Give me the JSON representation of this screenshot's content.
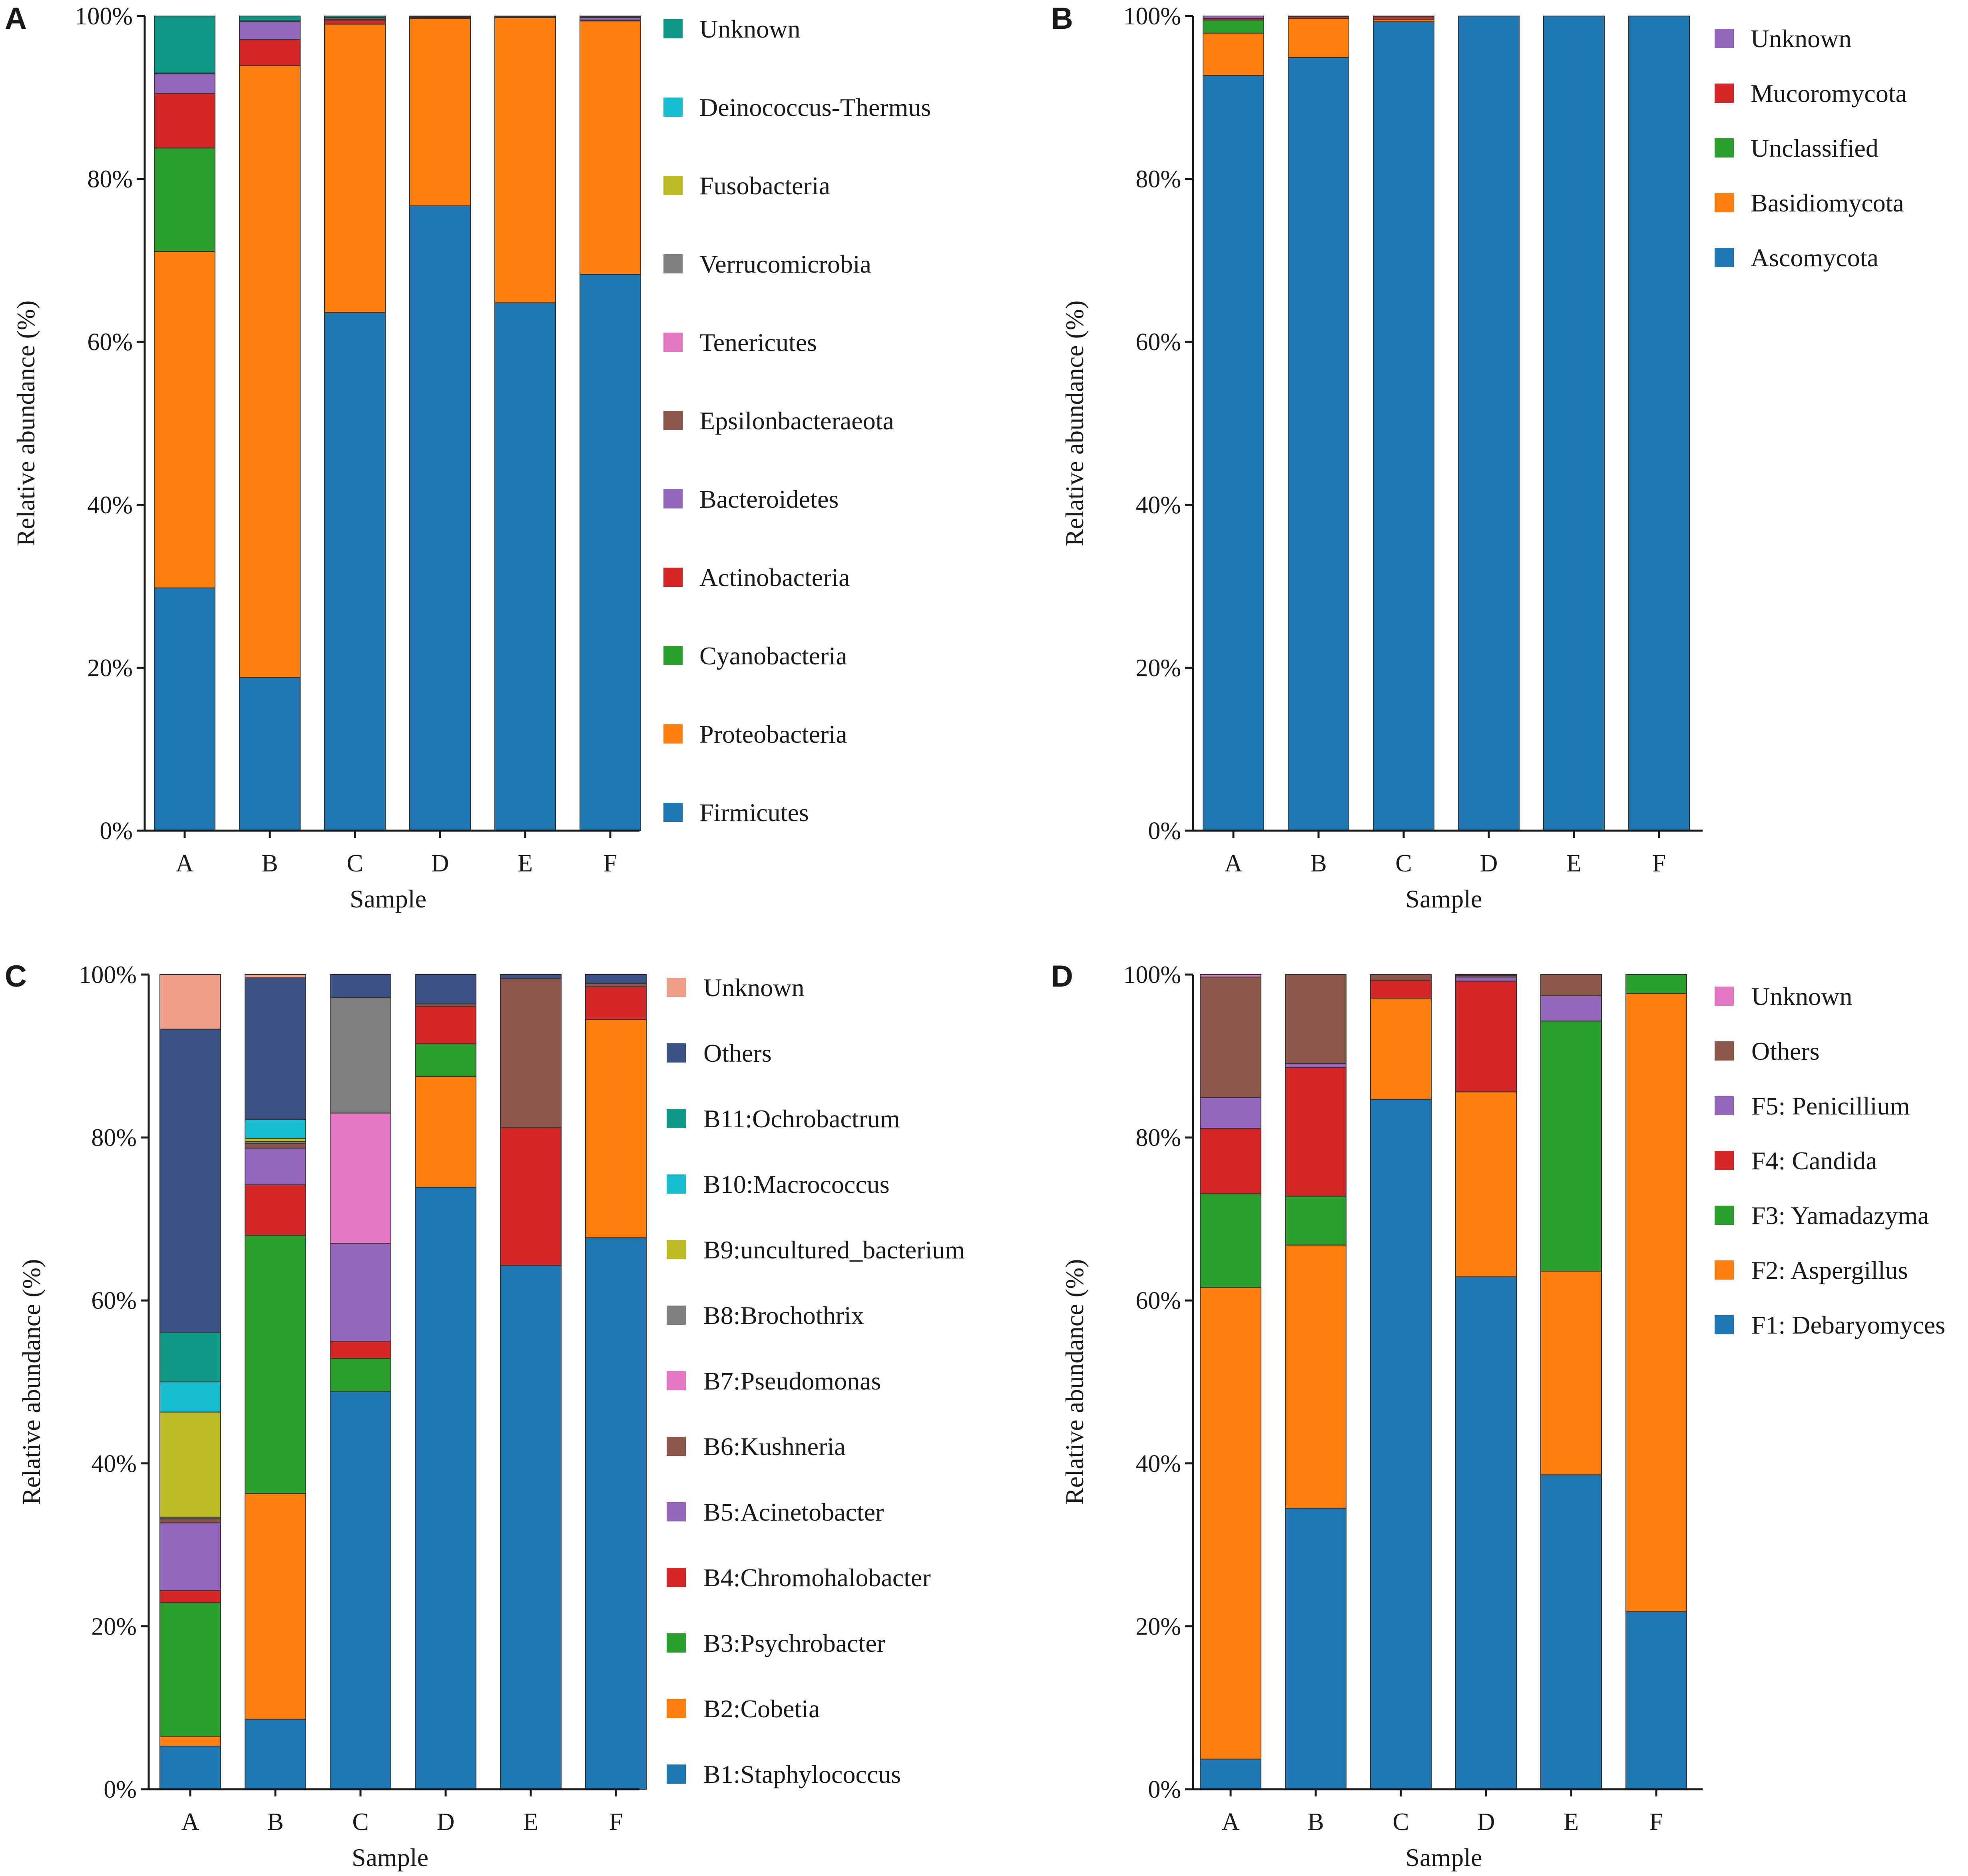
{
  "figure": {
    "description": ""
  },
  "colors": {
    "blue": "#1f77b4",
    "orange": "#ff7f0e",
    "green": "#2ca02c",
    "red": "#d62728",
    "purple": "#9467bd",
    "brown": "#8c564b",
    "pink": "#e377c2",
    "gray": "#7f7f7f",
    "olive": "#bcbd22",
    "cyan": "#17becf",
    "teal": "#0f9a87",
    "navy": "#3b5184",
    "salmon": "#f0a08a"
  },
  "chart_data": [
    {
      "id": "A",
      "panel_label": "A",
      "type": "bar",
      "stacked": true,
      "title": "",
      "xlabel": "Sample",
      "ylabel": "Relative abundance (%)",
      "ylim": [
        0,
        100
      ],
      "yticks": [
        "0%",
        "20%",
        "40%",
        "60%",
        "80%",
        "100%"
      ],
      "categories": [
        "A",
        "B",
        "C",
        "D",
        "E",
        "F"
      ],
      "series": [
        {
          "name": "Firmicutes",
          "color": "#1f77b4",
          "values": [
            29.8,
            18.8,
            63.6,
            76.7,
            64.8,
            68.3
          ]
        },
        {
          "name": "Proteobacteria",
          "color": "#ff7f0e",
          "values": [
            41.3,
            75.1,
            35.4,
            23.0,
            35.0,
            31.1
          ]
        },
        {
          "name": "Cyanobacteria",
          "color": "#2ca02c",
          "values": [
            12.7,
            0.0,
            0.0,
            0.0,
            0.0,
            0.0
          ]
        },
        {
          "name": "Actinobacteria",
          "color": "#d62728",
          "values": [
            6.7,
            3.2,
            0.5,
            0.1,
            0.05,
            0.1
          ]
        },
        {
          "name": "Bacteroidetes",
          "color": "#9467bd",
          "values": [
            2.4,
            2.2,
            0.1,
            0.05,
            0.05,
            0.3
          ]
        },
        {
          "name": "Epsilonbacteraeota",
          "color": "#8c564b",
          "values": [
            0.0,
            0.0,
            0.2,
            0.05,
            0.05,
            0.1
          ]
        },
        {
          "name": "Tenericutes",
          "color": "#e377c2",
          "values": [
            0.0,
            0.0,
            0.0,
            0.0,
            0.0,
            0.0
          ]
        },
        {
          "name": "Verrucomicrobia",
          "color": "#7f7f7f",
          "values": [
            0.0,
            0.0,
            0.0,
            0.05,
            0.0,
            0.0
          ]
        },
        {
          "name": "Fusobacteria",
          "color": "#bcbd22",
          "values": [
            0.0,
            0.0,
            0.0,
            0.0,
            0.0,
            0.0
          ]
        },
        {
          "name": "Deinococcus-Thermus",
          "color": "#17becf",
          "values": [
            0.1,
            0.1,
            0.0,
            0.0,
            0.0,
            0.0
          ]
        },
        {
          "name": "Unknown",
          "color": "#0f9a87",
          "values": [
            7.0,
            0.6,
            0.2,
            0.05,
            0.05,
            0.1
          ]
        }
      ],
      "legend_order": [
        "Unknown",
        "Deinococcus-Thermus",
        "Fusobacteria",
        "Verrucomicrobia",
        "Tenericutes",
        "Epsilonbacteraeota",
        "Bacteroidetes",
        "Actinobacteria",
        "Cyanobacteria",
        "Proteobacteria",
        "Firmicutes"
      ]
    },
    {
      "id": "B",
      "panel_label": "B",
      "type": "bar",
      "stacked": true,
      "title": "",
      "xlabel": "Sample",
      "ylabel": "Relative abundance (%)",
      "ylim": [
        0,
        100
      ],
      "yticks": [
        "0%",
        "20%",
        "40%",
        "60%",
        "80%",
        "100%"
      ],
      "categories": [
        "A",
        "B",
        "C",
        "D",
        "E",
        "F"
      ],
      "series": [
        {
          "name": "Ascomycota",
          "color": "#1f77b4",
          "values": [
            92.7,
            94.9,
            99.3,
            100.0,
            100.0,
            100.0
          ]
        },
        {
          "name": "Basidiomycota",
          "color": "#ff7f0e",
          "values": [
            5.2,
            4.8,
            0.3,
            0.0,
            0.0,
            0.0
          ]
        },
        {
          "name": "Unclassified",
          "color": "#2ca02c",
          "values": [
            1.6,
            0.0,
            0.0,
            0.0,
            0.0,
            0.0
          ]
        },
        {
          "name": "Mucoromycota",
          "color": "#d62728",
          "values": [
            0.2,
            0.2,
            0.3,
            0.0,
            0.0,
            0.0
          ]
        },
        {
          "name": "Unknown",
          "color": "#9467bd",
          "values": [
            0.3,
            0.1,
            0.1,
            0.0,
            0.0,
            0.0
          ]
        }
      ],
      "legend_order": [
        "Unknown",
        "Mucoromycota",
        "Unclassified",
        "Basidiomycota",
        "Ascomycota"
      ]
    },
    {
      "id": "C",
      "panel_label": "C",
      "type": "bar",
      "stacked": true,
      "title": "",
      "xlabel": "Sample",
      "ylabel": "Relative abundance (%)",
      "ylim": [
        0,
        100
      ],
      "yticks": [
        "0%",
        "20%",
        "40%",
        "60%",
        "80%",
        "100%"
      ],
      "categories": [
        "A",
        "B",
        "C",
        "D",
        "E",
        "F"
      ],
      "series": [
        {
          "name": "B1:Staphylococcus",
          "color": "#1f77b4",
          "values": [
            5.3,
            8.6,
            48.8,
            73.9,
            64.3,
            67.7
          ]
        },
        {
          "name": "B2:Cobetia",
          "color": "#ff7f0e",
          "values": [
            1.2,
            27.7,
            0.0,
            13.6,
            0.0,
            26.8
          ]
        },
        {
          "name": "B3:Psychrobacter",
          "color": "#2ca02c",
          "values": [
            16.4,
            31.7,
            4.1,
            4.0,
            0.0,
            0.0
          ]
        },
        {
          "name": "B4:Chromohalobacter",
          "color": "#d62728",
          "values": [
            1.5,
            6.2,
            2.1,
            4.6,
            16.9,
            4.0
          ]
        },
        {
          "name": "B5:Acinetobacter",
          "color": "#9467bd",
          "values": [
            8.3,
            4.5,
            12.0,
            0.0,
            0.0,
            0.0
          ]
        },
        {
          "name": "B6:Kushneria",
          "color": "#8c564b",
          "values": [
            0.5,
            0.6,
            0.0,
            0.3,
            18.3,
            0.4
          ]
        },
        {
          "name": "B7:Pseudomonas",
          "color": "#e377c2",
          "values": [
            0.0,
            0.0,
            16.0,
            0.0,
            0.0,
            0.0
          ]
        },
        {
          "name": "B8:Brochothrix",
          "color": "#7f7f7f",
          "values": [
            0.2,
            0.2,
            14.2,
            0.0,
            0.0,
            0.0
          ]
        },
        {
          "name": "B9:uncultured_bacterium",
          "color": "#bcbd22",
          "values": [
            12.9,
            0.4,
            0.0,
            0.0,
            0.0,
            0.0
          ]
        },
        {
          "name": "B10:Macrococcus",
          "color": "#17becf",
          "values": [
            3.7,
            2.3,
            0.0,
            0.0,
            0.0,
            0.0
          ]
        },
        {
          "name": "B11:Ochrobactrum",
          "color": "#0f9a87",
          "values": [
            6.1,
            0.0,
            0.0,
            0.0,
            0.0,
            0.0
          ]
        },
        {
          "name": "Others",
          "color": "#3b5184",
          "values": [
            37.2,
            17.4,
            2.8,
            3.6,
            0.5,
            1.1
          ]
        },
        {
          "name": "Unknown",
          "color": "#f0a08a",
          "values": [
            6.7,
            0.4,
            0.0,
            0.0,
            0.0,
            0.0
          ]
        }
      ],
      "legend_order": [
        "Unknown",
        "Others",
        "B11:Ochrobactrum",
        "B10:Macrococcus",
        "B9:uncultured_bacterium",
        "B8:Brochothrix",
        "B7:Pseudomonas",
        "B6:Kushneria",
        "B5:Acinetobacter",
        "B4:Chromohalobacter",
        "B3:Psychrobacter",
        "B2:Cobetia",
        "B1:Staphylococcus"
      ]
    },
    {
      "id": "D",
      "panel_label": "D",
      "type": "bar",
      "stacked": true,
      "title": "",
      "xlabel": "Sample",
      "ylabel": "Relative abundance (%)",
      "ylim": [
        0,
        100
      ],
      "yticks": [
        "0%",
        "20%",
        "40%",
        "60%",
        "80%",
        "100%"
      ],
      "categories": [
        "A",
        "B",
        "C",
        "D",
        "E",
        "F"
      ],
      "series": [
        {
          "name": "F1: Debaryomyces",
          "color": "#1f77b4",
          "values": [
            3.7,
            34.5,
            84.7,
            62.9,
            38.6,
            21.8
          ]
        },
        {
          "name": "F2: Aspergillus",
          "color": "#ff7f0e",
          "values": [
            57.9,
            32.3,
            12.4,
            22.7,
            25.0,
            75.9
          ]
        },
        {
          "name": "F3: Yamadazyma",
          "color": "#2ca02c",
          "values": [
            11.5,
            6.0,
            0.0,
            0.0,
            30.7,
            2.3
          ]
        },
        {
          "name": "F4: Candida",
          "color": "#d62728",
          "values": [
            8.0,
            15.8,
            2.2,
            13.6,
            0.0,
            0.0
          ]
        },
        {
          "name": "F5: Penicillium",
          "color": "#9467bd",
          "values": [
            3.8,
            0.5,
            0.0,
            0.5,
            3.1,
            0.0
          ]
        },
        {
          "name": "Others",
          "color": "#8c564b",
          "values": [
            14.8,
            10.9,
            0.7,
            0.2,
            2.6,
            0.0
          ]
        },
        {
          "name": "Unknown",
          "color": "#e377c2",
          "values": [
            0.3,
            0.0,
            0.0,
            0.1,
            0.0,
            0.0
          ]
        }
      ],
      "legend_order": [
        "Unknown",
        "Others",
        "F5: Penicillium",
        "F4: Candida",
        "F3: Yamadazyma",
        "F2: Aspergillus",
        "F1: Debaryomyces"
      ]
    }
  ]
}
